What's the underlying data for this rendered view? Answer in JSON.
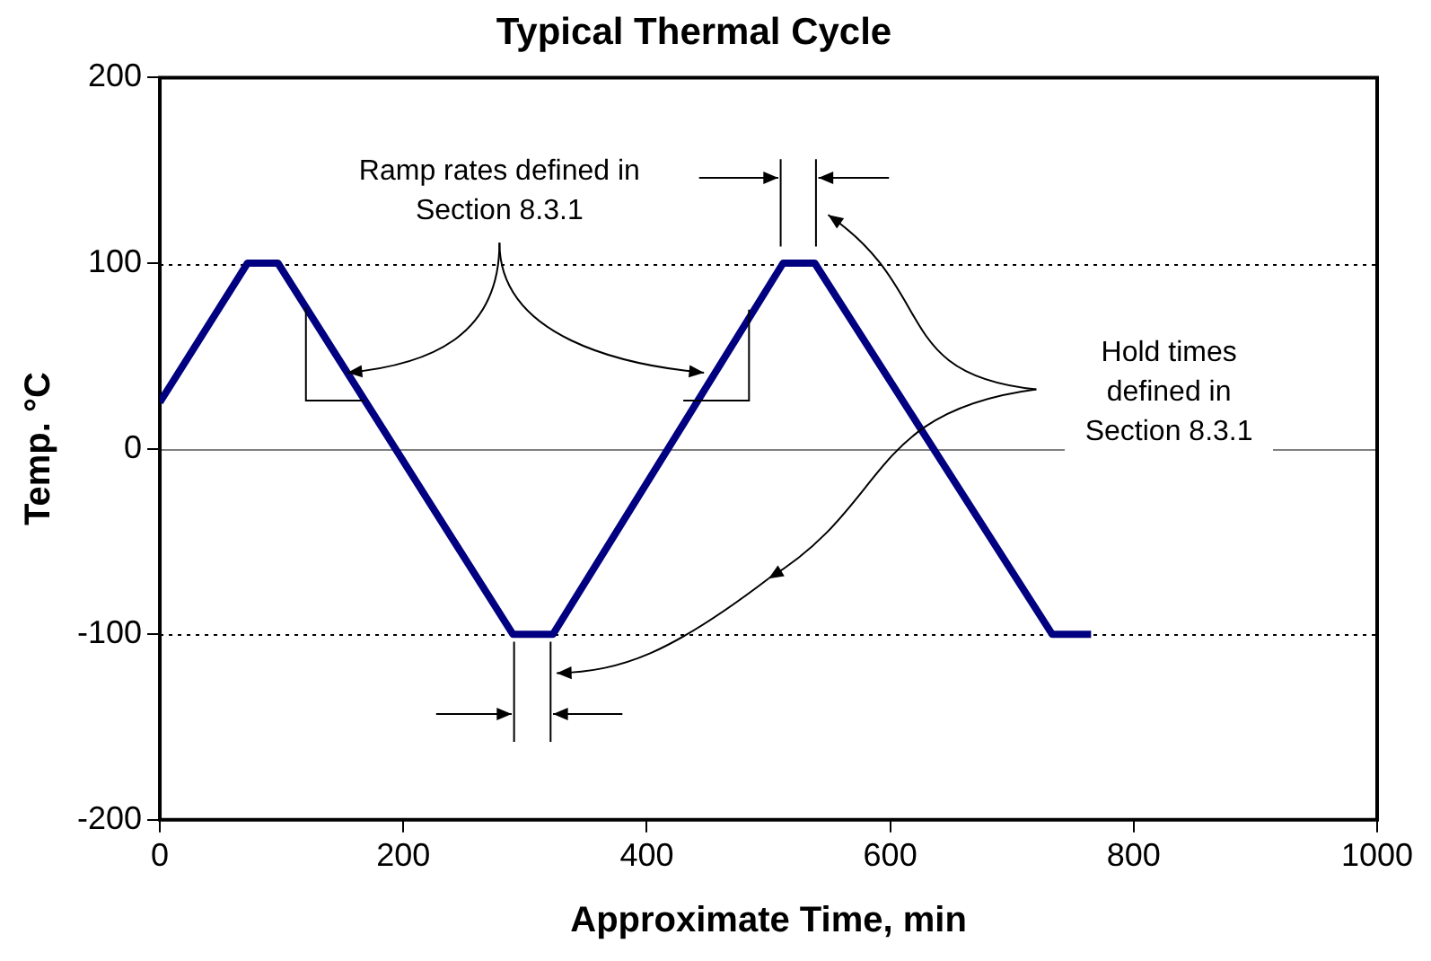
{
  "chart_data": {
    "type": "line",
    "title": "Typical Thermal Cycle",
    "xlabel": "Approximate Time, min",
    "ylabel": "Temp. °C",
    "x": [
      0,
      72,
      97,
      290,
      323,
      512,
      538,
      733,
      765
    ],
    "series": [
      {
        "color": "#000080",
        "values": [
          25,
          100,
          100,
          -100,
          -100,
          100,
          100,
          -100,
          -100
        ]
      }
    ],
    "xlim": [
      0,
      1000
    ],
    "xticks": [
      0,
      200,
      400,
      600,
      800,
      1000
    ],
    "ylim": [
      -200,
      200
    ],
    "yticks": [
      -200,
      -100,
      0,
      100,
      200
    ],
    "grid": "y",
    "legend": false,
    "marker": "none",
    "line_style": "solid",
    "ref_lines": [
      {
        "axis": "y",
        "value": 0,
        "color": "#808080",
        "line_style": "solid"
      }
    ],
    "annotations": [
      {
        "text": "Ramp rates defined in Section 8.3.1",
        "x": 154,
        "y": 41
      },
      "Hold times defined in Section 8.3.1"
    ]
  }
}
